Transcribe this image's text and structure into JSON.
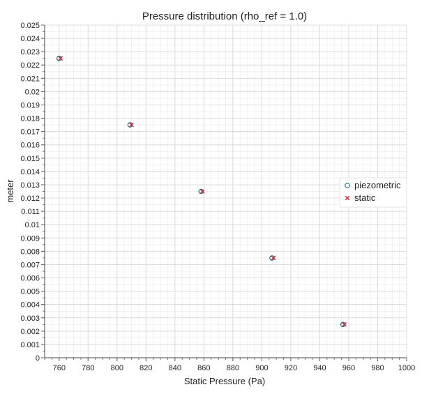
{
  "chart_data": {
    "type": "scatter",
    "title": "Pressure distribution (rho_ref = 1.0)",
    "xlabel": "Static Pressure (Pa)",
    "ylabel": "meter",
    "xlim": [
      750,
      1000
    ],
    "ylim": [
      0,
      0.025
    ],
    "x_ticks": [
      "760",
      "780",
      "800",
      "820",
      "840",
      "860",
      "880",
      "900",
      "920",
      "940",
      "960",
      "980",
      "1000"
    ],
    "y_ticks": [
      "0",
      "0.001",
      "0.002",
      "0.003",
      "0.004",
      "0.005",
      "0.006",
      "0.007",
      "0.008",
      "0.009",
      "0.01",
      "0.011",
      "0.012",
      "0.013",
      "0.014",
      "0.015",
      "0.016",
      "0.017",
      "0.018",
      "0.019",
      "0.02",
      "0.021",
      "0.022",
      "0.023",
      "0.024",
      "0.025"
    ],
    "grid": true,
    "legend_position": "right",
    "series": [
      {
        "name": "piezometric",
        "marker": "circle",
        "color": "#1f6f8b",
        "points": [
          {
            "x": 760,
            "y": 0.0225
          },
          {
            "x": 809,
            "y": 0.0175
          },
          {
            "x": 858,
            "y": 0.0125
          },
          {
            "x": 907,
            "y": 0.0075
          },
          {
            "x": 956,
            "y": 0.0025
          }
        ]
      },
      {
        "name": "static",
        "marker": "x",
        "color": "#cc1f2f",
        "points": [
          {
            "x": 761,
            "y": 0.0225
          },
          {
            "x": 810,
            "y": 0.0175
          },
          {
            "x": 859,
            "y": 0.0125
          },
          {
            "x": 908,
            "y": 0.0075
          },
          {
            "x": 957,
            "y": 0.0025
          }
        ]
      }
    ]
  }
}
